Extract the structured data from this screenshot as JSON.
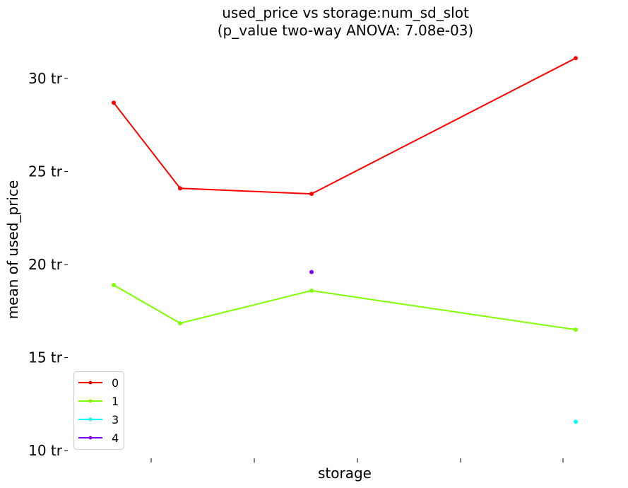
{
  "chart_data": {
    "type": "line",
    "title": "used_price vs storage:num_sd_slot",
    "subtitle": "(p_value two-way ANOVA: 7.08e-03)",
    "xlabel": "storage",
    "ylabel": "mean of used_price",
    "ylim": [
      9.7,
      32.4
    ],
    "yticks": [
      {
        "value": 10,
        "label": "10 tr"
      },
      {
        "value": 15,
        "label": "15 tr"
      },
      {
        "value": 20,
        "label": "20 tr"
      },
      {
        "value": 25,
        "label": "25 tr"
      },
      {
        "value": 30,
        "label": "30 tr"
      }
    ],
    "x_tick_labels": [
      "",
      "",
      "",
      "",
      ""
    ],
    "legend_position": "lower-left",
    "grid": false,
    "series": [
      {
        "name": "0",
        "color": "#ff0000",
        "points": [
          {
            "x": 1,
            "y": 28.7
          },
          {
            "x": 2,
            "y": 24.1
          },
          {
            "x": 4,
            "y": 23.8
          },
          {
            "x": 8,
            "y": 31.1
          }
        ]
      },
      {
        "name": "1",
        "color": "#80ff00",
        "points": [
          {
            "x": 1,
            "y": 18.9
          },
          {
            "x": 2,
            "y": 16.85
          },
          {
            "x": 4,
            "y": 18.6
          },
          {
            "x": 8,
            "y": 16.5
          }
        ]
      },
      {
        "name": "3",
        "color": "#00ffff",
        "points": [
          {
            "x": 8,
            "y": 11.55
          }
        ]
      },
      {
        "name": "4",
        "color": "#8000ff",
        "points": [
          {
            "x": 4,
            "y": 19.6
          }
        ]
      }
    ]
  }
}
